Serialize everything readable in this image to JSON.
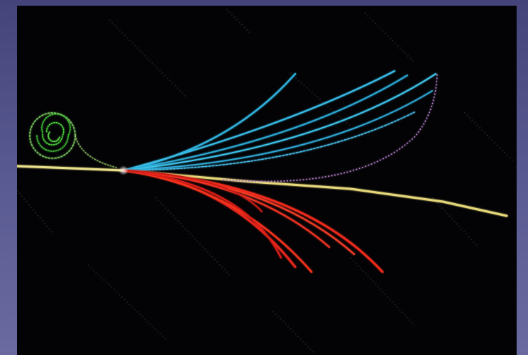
{
  "image": {
    "subject": "particle-collision-tracks",
    "colors": {
      "background": "#030305",
      "frame": "#55558c",
      "beam_line": "#e9e08a",
      "blue_tracks": "#2fb2dd",
      "red_tracks": "#e8251c",
      "spiral": "#3fbf34",
      "purple_arc": "#b07cc6"
    },
    "track_counts": {
      "blue": 6,
      "red": 7
    }
  }
}
